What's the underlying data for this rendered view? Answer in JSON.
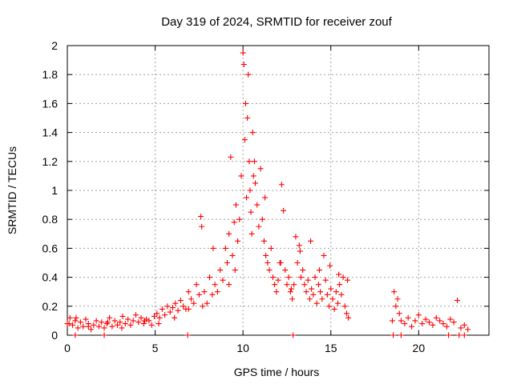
{
  "chart_data": {
    "type": "scatter",
    "title": "Day 319 of 2024, SRMTID for receiver zouf",
    "xlabel": "GPS time / hours",
    "ylabel": "SRMTID / TECUs",
    "xlim": [
      0,
      24
    ],
    "ylim": [
      0,
      2
    ],
    "xticks": [
      0,
      5,
      10,
      15,
      20
    ],
    "xtick_labels": [
      "0",
      "5",
      "10",
      "15",
      "20"
    ],
    "yticks": [
      0,
      0.2,
      0.4,
      0.6,
      0.8,
      1,
      1.2,
      1.4,
      1.6,
      1.8,
      2
    ],
    "ytick_labels": [
      "0",
      "0.2",
      "0.4",
      "0.6",
      "0.8",
      "1",
      "1.2",
      "1.4",
      "1.6",
      "1.8",
      "2"
    ],
    "grid": true,
    "marker": "+",
    "color": "#ff0000",
    "series": [
      {
        "name": "SRMTID",
        "x": [
          0.0,
          0.15,
          0.3,
          0.45,
          0.6,
          0.75,
          0.9,
          1.05,
          1.2,
          1.35,
          1.5,
          1.65,
          1.8,
          1.95,
          2.1,
          2.25,
          2.4,
          2.55,
          2.7,
          2.85,
          3.0,
          3.15,
          3.3,
          3.45,
          3.6,
          3.75,
          3.9,
          4.05,
          4.2,
          4.35,
          4.5,
          4.65,
          4.8,
          4.95,
          5.1,
          5.25,
          5.4,
          5.55,
          5.7,
          5.85,
          6.0,
          6.15,
          6.3,
          6.45,
          6.6,
          6.75,
          6.9,
          7.05,
          7.2,
          7.35,
          7.5,
          7.6,
          7.65,
          7.8,
          7.95,
          8.1,
          8.25,
          8.4,
          8.55,
          8.7,
          8.85,
          9.0,
          9.1,
          9.2,
          9.3,
          9.4,
          9.5,
          9.6,
          9.7,
          9.8,
          9.9,
          10.0,
          10.05,
          10.1,
          10.15,
          10.2,
          10.25,
          10.3,
          10.35,
          10.4,
          10.45,
          10.5,
          10.55,
          10.6,
          10.7,
          10.8,
          10.9,
          11.0,
          11.1,
          11.2,
          11.3,
          11.4,
          11.5,
          11.6,
          11.7,
          11.8,
          11.9,
          12.0,
          12.1,
          12.2,
          12.3,
          12.4,
          12.5,
          12.6,
          12.7,
          12.8,
          12.9,
          13.0,
          13.1,
          13.2,
          13.3,
          13.4,
          13.5,
          13.6,
          13.7,
          13.8,
          13.9,
          14.0,
          14.1,
          14.2,
          14.3,
          14.4,
          14.5,
          14.6,
          14.7,
          14.8,
          14.9,
          15.0,
          15.1,
          15.2,
          15.3,
          15.4,
          15.5,
          15.6,
          15.7,
          15.8,
          15.9,
          16.0,
          18.5,
          18.6,
          18.7,
          18.8,
          18.9,
          19.0,
          19.2,
          19.4,
          19.6,
          19.8,
          20.0,
          20.2,
          20.4,
          20.6,
          20.8,
          21.0,
          21.2,
          21.4,
          21.6,
          21.8,
          22.0,
          22.2,
          22.4,
          22.6,
          22.8,
          0.1,
          0.5,
          1.2,
          2.3,
          3.1,
          4.4,
          5.2,
          6.1,
          6.9,
          7.7,
          8.3,
          9.2,
          9.55,
          10.65,
          11.25,
          12.15,
          12.75,
          13.25,
          13.85,
          14.35,
          14.95,
          15.45,
          15.95,
          0.45,
          2.1,
          6.85,
          12.85,
          18.55,
          19.0,
          21.7,
          22.3,
          22.6
        ],
        "y": [
          0.08,
          0.12,
          0.07,
          0.1,
          0.05,
          0.09,
          0.06,
          0.11,
          0.08,
          0.04,
          0.07,
          0.1,
          0.06,
          0.09,
          0.05,
          0.08,
          0.12,
          0.06,
          0.1,
          0.07,
          0.09,
          0.13,
          0.08,
          0.11,
          0.07,
          0.1,
          0.14,
          0.09,
          0.12,
          0.08,
          0.11,
          0.1,
          0.07,
          0.13,
          0.15,
          0.12,
          0.18,
          0.14,
          0.2,
          0.16,
          0.19,
          0.22,
          0.17,
          0.24,
          0.2,
          0.18,
          0.3,
          0.25,
          0.22,
          0.35,
          0.28,
          0.82,
          0.75,
          0.3,
          0.22,
          0.4,
          0.28,
          0.35,
          0.3,
          0.45,
          0.38,
          0.6,
          0.5,
          0.7,
          1.23,
          0.55,
          0.78,
          0.9,
          0.65,
          0.8,
          1.1,
          1.95,
          1.87,
          1.35,
          1.6,
          0.95,
          1.5,
          1.8,
          1.2,
          1.0,
          0.85,
          0.7,
          1.4,
          1.1,
          1.05,
          0.9,
          0.75,
          1.15,
          0.8,
          0.65,
          0.55,
          0.5,
          0.45,
          0.6,
          0.4,
          0.35,
          0.3,
          0.38,
          0.5,
          1.04,
          0.86,
          0.45,
          0.35,
          0.4,
          0.3,
          0.25,
          0.35,
          0.68,
          0.5,
          0.62,
          0.4,
          0.45,
          0.35,
          0.3,
          0.38,
          0.25,
          0.32,
          0.28,
          0.4,
          0.22,
          0.35,
          0.3,
          0.25,
          0.55,
          0.38,
          0.28,
          0.2,
          0.32,
          0.25,
          0.18,
          0.3,
          0.22,
          0.35,
          0.28,
          0.4,
          0.2,
          0.15,
          0.12,
          0.1,
          0.3,
          0.2,
          0.25,
          0.15,
          0.1,
          0.08,
          0.12,
          0.06,
          0.1,
          0.14,
          0.08,
          0.11,
          0.09,
          0.07,
          0.12,
          0.1,
          0.08,
          0.06,
          0.11,
          0.09,
          0.24,
          0.05,
          0.07,
          0.04,
          0.08,
          0.12,
          0.06,
          0.09,
          0.05,
          0.1,
          0.08,
          0.12,
          0.18,
          0.2,
          0.6,
          0.35,
          0.45,
          1.2,
          0.95,
          0.5,
          0.32,
          0.58,
          0.65,
          0.45,
          0.48,
          0.42,
          0.38,
          0.0,
          0.0,
          0.0,
          0.0,
          0.0,
          0.0,
          0.0,
          0.0,
          0.0
        ]
      }
    ]
  }
}
